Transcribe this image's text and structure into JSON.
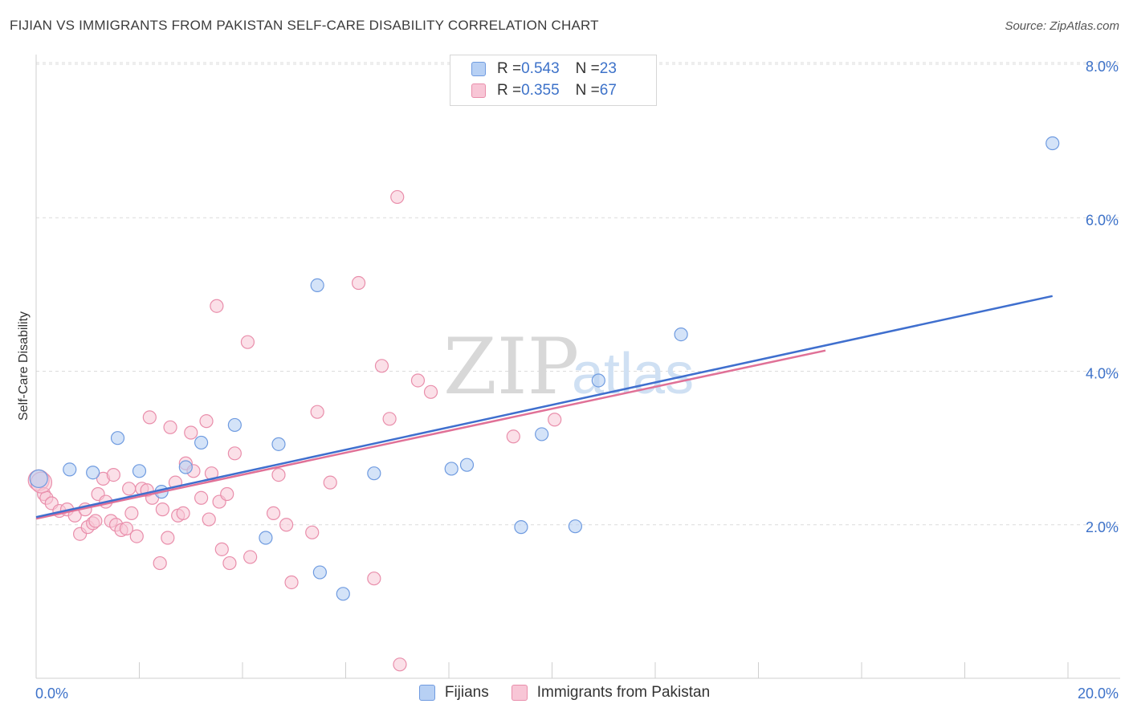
{
  "title": "FIJIAN VS IMMIGRANTS FROM PAKISTAN SELF-CARE DISABILITY CORRELATION CHART",
  "source": "Source: ZipAtlas.com",
  "watermark": {
    "zip": "ZIP",
    "atlas": "atlas"
  },
  "legend_top": [
    {
      "r_label": "R = ",
      "r_value": "0.543",
      "n_label": "N = ",
      "n_value": "23"
    },
    {
      "r_label": "R = ",
      "r_value": "0.355",
      "n_label": "N = ",
      "n_value": "67"
    }
  ],
  "chart_data": {
    "type": "scatter",
    "title": "FIJIAN VS IMMIGRANTS FROM PAKISTAN SELF-CARE DISABILITY CORRELATION CHART",
    "xlabel": "",
    "ylabel": "Self-Care Disability",
    "xlim": [
      0,
      20
    ],
    "ylim": [
      0,
      8
    ],
    "x_tick_labels": [
      "0.0%",
      "20.0%"
    ],
    "y_ticks": [
      2,
      4,
      6,
      8
    ],
    "y_tick_labels": [
      "2.0%",
      "4.0%",
      "6.0%",
      "8.0%"
    ],
    "grid": true,
    "legend_position": "top-center",
    "colors": {
      "fijians_fill": "#b7d0f4",
      "fijians_stroke": "#6f9be0",
      "fijians_line": "#3f6fce",
      "pakistan_fill": "#f8c6d6",
      "pakistan_stroke": "#e98eab",
      "pakistan_line": "#e07197"
    },
    "series": [
      {
        "name": "Fijians",
        "r": 0.543,
        "n": 23,
        "trend": {
          "x": [
            0,
            19.7
          ],
          "y": [
            2.1,
            4.98
          ]
        },
        "points": [
          [
            0.05,
            2.6
          ],
          [
            0.65,
            2.72
          ],
          [
            1.1,
            2.68
          ],
          [
            1.58,
            3.13
          ],
          [
            2.0,
            2.7
          ],
          [
            2.43,
            2.43
          ],
          [
            2.9,
            2.75
          ],
          [
            3.2,
            3.07
          ],
          [
            3.85,
            3.3
          ],
          [
            4.45,
            1.83
          ],
          [
            4.7,
            3.05
          ],
          [
            5.5,
            1.38
          ],
          [
            5.45,
            5.12
          ],
          [
            5.95,
            1.1
          ],
          [
            6.55,
            2.67
          ],
          [
            8.05,
            2.73
          ],
          [
            8.35,
            2.78
          ],
          [
            9.4,
            1.97
          ],
          [
            9.8,
            3.18
          ],
          [
            10.45,
            1.98
          ],
          [
            10.9,
            3.88
          ],
          [
            12.5,
            4.48
          ],
          [
            19.7,
            6.97
          ]
        ]
      },
      {
        "name": "Immigrants from Pakistan",
        "r": 0.355,
        "n": 67,
        "trend": {
          "x": [
            0,
            15.3
          ],
          "y": [
            2.08,
            4.27
          ]
        },
        "points": [
          [
            0.05,
            2.58
          ],
          [
            0.15,
            2.4
          ],
          [
            0.2,
            2.35
          ],
          [
            0.3,
            2.28
          ],
          [
            0.45,
            2.18
          ],
          [
            0.6,
            2.2
          ],
          [
            0.75,
            2.12
          ],
          [
            0.85,
            1.88
          ],
          [
            0.95,
            2.2
          ],
          [
            1.0,
            1.97
          ],
          [
            1.1,
            2.02
          ],
          [
            1.15,
            2.05
          ],
          [
            1.2,
            2.4
          ],
          [
            1.3,
            2.6
          ],
          [
            1.35,
            2.3
          ],
          [
            1.45,
            2.05
          ],
          [
            1.5,
            2.65
          ],
          [
            1.55,
            2.0
          ],
          [
            1.65,
            1.93
          ],
          [
            1.75,
            1.95
          ],
          [
            1.8,
            2.47
          ],
          [
            1.85,
            2.15
          ],
          [
            1.95,
            1.85
          ],
          [
            2.05,
            2.47
          ],
          [
            2.15,
            2.45
          ],
          [
            2.2,
            3.4
          ],
          [
            2.25,
            2.35
          ],
          [
            2.4,
            1.5
          ],
          [
            2.45,
            2.2
          ],
          [
            2.55,
            1.83
          ],
          [
            2.6,
            3.27
          ],
          [
            2.7,
            2.55
          ],
          [
            2.75,
            2.12
          ],
          [
            2.85,
            2.15
          ],
          [
            2.9,
            2.8
          ],
          [
            3.0,
            3.2
          ],
          [
            3.05,
            2.7
          ],
          [
            3.2,
            2.35
          ],
          [
            3.3,
            3.35
          ],
          [
            3.35,
            2.07
          ],
          [
            3.4,
            2.67
          ],
          [
            3.5,
            4.85
          ],
          [
            3.55,
            2.3
          ],
          [
            3.6,
            1.68
          ],
          [
            3.7,
            2.4
          ],
          [
            3.75,
            1.5
          ],
          [
            3.85,
            2.93
          ],
          [
            4.1,
            4.38
          ],
          [
            4.15,
            1.58
          ],
          [
            4.6,
            2.15
          ],
          [
            4.7,
            2.65
          ],
          [
            4.85,
            2.0
          ],
          [
            4.95,
            1.25
          ],
          [
            5.35,
            1.9
          ],
          [
            5.45,
            3.47
          ],
          [
            5.7,
            2.55
          ],
          [
            6.25,
            5.15
          ],
          [
            6.55,
            1.3
          ],
          [
            6.7,
            4.07
          ],
          [
            6.85,
            3.38
          ],
          [
            7.0,
            6.27
          ],
          [
            7.05,
            0.18
          ],
          [
            7.4,
            3.88
          ],
          [
            7.65,
            3.73
          ],
          [
            9.25,
            3.15
          ],
          [
            10.05,
            3.37
          ],
          [
            0.1,
            2.55
          ]
        ]
      }
    ]
  }
}
